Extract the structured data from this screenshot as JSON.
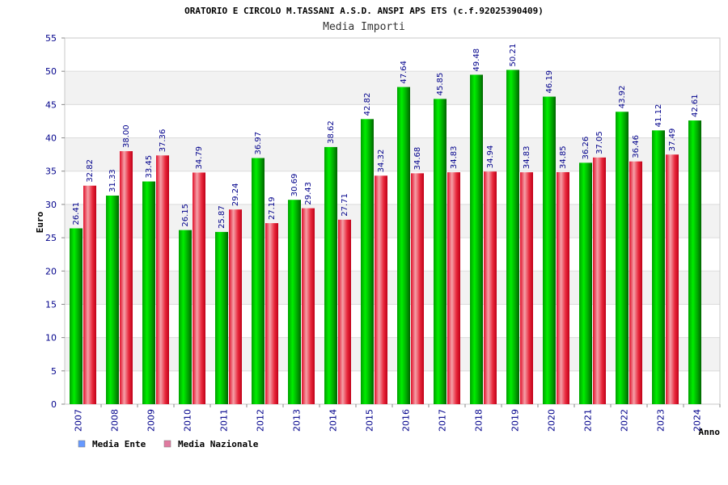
{
  "chart_data": {
    "type": "bar",
    "title": "ORATORIO E CIRCOLO M.TASSANI A.S.D. ANSPI APS ETS (c.f.92025390409)",
    "subtitle": "Media Importi",
    "ylabel": "Euro",
    "xlabel": "Anno",
    "ylim": [
      0,
      55
    ],
    "yticks": [
      "0",
      "5",
      "10",
      "15",
      "20",
      "25",
      "30",
      "35",
      "40",
      "45",
      "50",
      "55"
    ],
    "grid": true,
    "legend_position": "bottom-left",
    "categories": [
      "2007",
      "2008",
      "2009",
      "2010",
      "2011",
      "2012",
      "2013",
      "2014",
      "2015",
      "2016",
      "2017",
      "2018",
      "2019",
      "2020",
      "2021",
      "2022",
      "2023",
      "2024"
    ],
    "series": [
      {
        "name": "Media Ente",
        "legend_color": "#6699ff",
        "bar_color": "#00b000",
        "values": [
          26.41,
          31.33,
          33.45,
          26.15,
          25.87,
          36.97,
          30.69,
          38.62,
          42.82,
          47.64,
          45.85,
          49.48,
          50.21,
          46.19,
          36.26,
          43.92,
          41.12,
          42.61
        ],
        "labels": [
          "26.41",
          "31.33",
          "33.45",
          "26.15",
          "25.87",
          "36.97",
          "30.69",
          "38.62",
          "42.82",
          "47.64",
          "45.85",
          "49.48",
          "50.21",
          "46.19",
          "36.26",
          "43.92",
          "41.12",
          "42.61"
        ]
      },
      {
        "name": "Media Nazionale",
        "legend_color": "#e07aa0",
        "bar_color": "#e8102a",
        "values": [
          32.82,
          38.0,
          37.36,
          34.79,
          29.24,
          27.19,
          29.43,
          27.71,
          34.32,
          34.68,
          34.83,
          34.94,
          34.83,
          34.85,
          37.05,
          36.46,
          37.49,
          null
        ],
        "labels": [
          "32.82",
          "38.00",
          "37.36",
          "34.79",
          "29.24",
          "27.19",
          "29.43",
          "27.71",
          "34.32",
          "34.68",
          "34.83",
          "34.94",
          "34.83",
          "34.85",
          "37.05",
          "36.46",
          "37.49",
          null
        ]
      }
    ]
  }
}
